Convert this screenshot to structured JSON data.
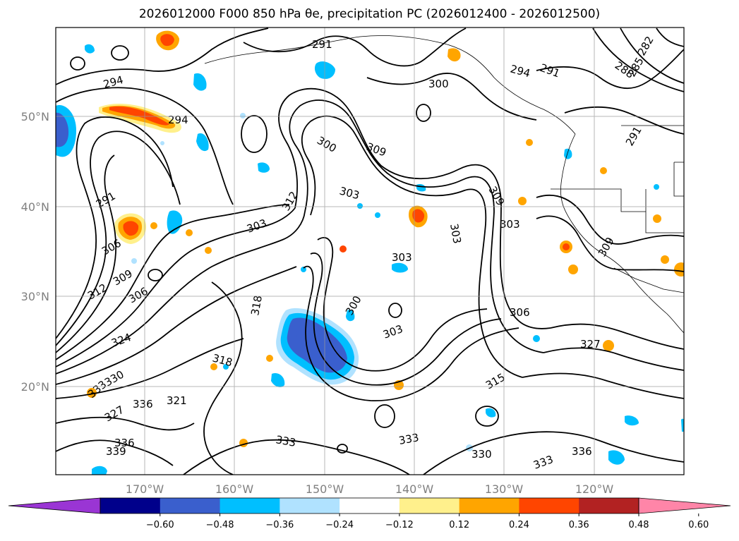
{
  "title": "2026012000 F000 850 hPa θe, precipitation PC (2026012400 - 2026012500)",
  "lat_labels": [
    "50°N",
    "40°N",
    "30°N",
    "20°N"
  ],
  "lon_labels": [
    "170°W",
    "160°W",
    "150°W",
    "140°W",
    "130°W",
    "120°W"
  ],
  "colorbar": {
    "colors": [
      "#9a35d4",
      "#00008b",
      "#3a5fcd",
      "#00bfff",
      "#b0e2ff",
      "#ffffff",
      "#fff08c",
      "#ffa500",
      "#ff4500",
      "#b22222",
      "#ff85a8"
    ],
    "ticks": [
      "−0.60",
      "−0.48",
      "−0.36",
      "−0.24",
      "−0.12",
      "0.12",
      "0.24",
      "0.36",
      "0.48",
      "0.60"
    ]
  },
  "contour_labels": [
    {
      "text": "291"
    },
    {
      "text": "294"
    },
    {
      "text": "300"
    },
    {
      "text": "291"
    },
    {
      "text": "288"
    },
    {
      "text": "285"
    },
    {
      "text": "282"
    },
    {
      "text": "294"
    },
    {
      "text": "294"
    },
    {
      "text": "300"
    },
    {
      "text": "309"
    },
    {
      "text": "291"
    },
    {
      "text": "303"
    },
    {
      "text": "312"
    },
    {
      "text": "303"
    },
    {
      "text": "303"
    },
    {
      "text": "303"
    },
    {
      "text": "306"
    },
    {
      "text": "309"
    },
    {
      "text": "309"
    },
    {
      "text": "312"
    },
    {
      "text": "303"
    },
    {
      "text": "306"
    },
    {
      "text": "318"
    },
    {
      "text": "309"
    },
    {
      "text": "300"
    },
    {
      "text": "303"
    },
    {
      "text": "306"
    },
    {
      "text": "324"
    },
    {
      "text": "327"
    },
    {
      "text": "318"
    },
    {
      "text": "315"
    },
    {
      "text": "330"
    },
    {
      "text": "333"
    },
    {
      "text": "327"
    },
    {
      "text": "336"
    },
    {
      "text": "321"
    },
    {
      "text": "336"
    },
    {
      "text": "339"
    },
    {
      "text": "333"
    },
    {
      "text": "333"
    },
    {
      "text": "330"
    },
    {
      "text": "333"
    },
    {
      "text": "336"
    },
    {
      "text": "291"
    }
  ]
}
